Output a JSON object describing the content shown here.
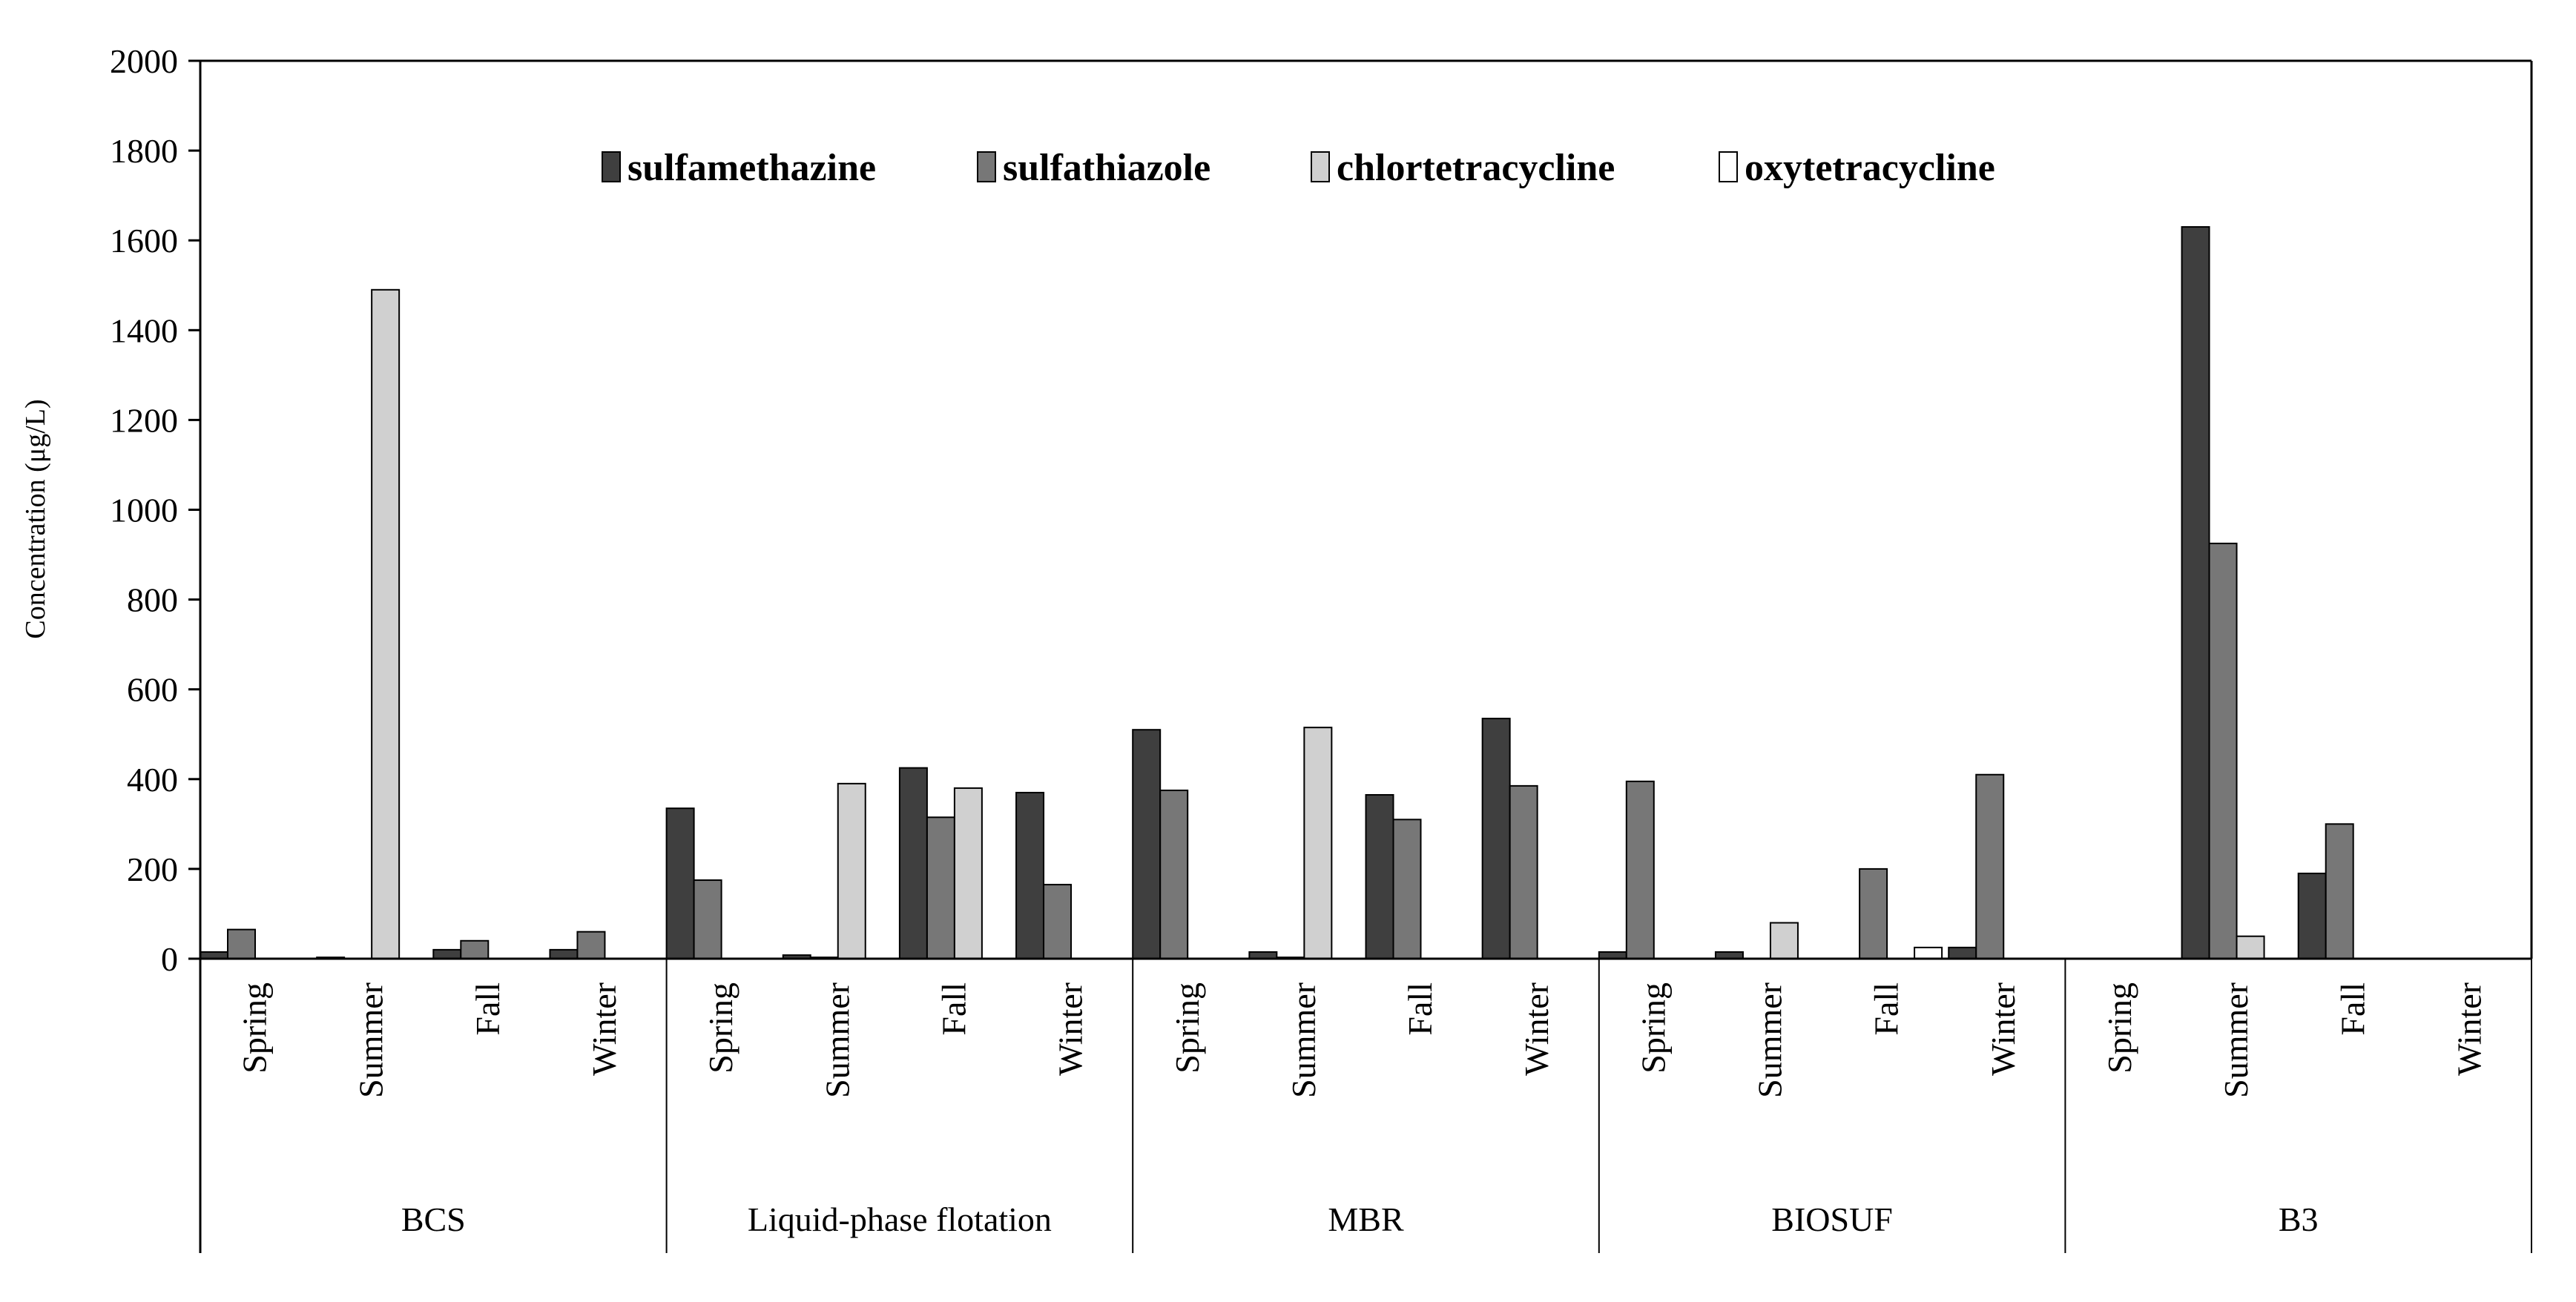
{
  "chart_data": {
    "type": "bar",
    "title": "",
    "xlabel": "",
    "ylabel": "Concentration (μg/L)",
    "ylim": [
      0,
      2000
    ],
    "yticks": [
      0,
      200,
      400,
      600,
      800,
      1000,
      1200,
      1400,
      1600,
      1800,
      2000
    ],
    "grid": false,
    "legend_position": "top",
    "groups": [
      "BCS",
      "Liquid-phase flotation",
      "MBR",
      "BIOSUF",
      "B3"
    ],
    "seasons": [
      "Spring",
      "Summer",
      "Fall",
      "Winter"
    ],
    "series": [
      {
        "name": "sulfamethazine",
        "color": "#3f3f3f",
        "values": [
          [
            15,
            3,
            20,
            20
          ],
          [
            335,
            8,
            425,
            370
          ],
          [
            510,
            15,
            365,
            535
          ],
          [
            15,
            15,
            0,
            25
          ],
          [
            0,
            1630,
            190,
            0
          ]
        ]
      },
      {
        "name": "sulfathiazole",
        "color": "#777777",
        "values": [
          [
            65,
            0,
            40,
            60
          ],
          [
            175,
            3,
            315,
            165
          ],
          [
            375,
            3,
            310,
            385
          ],
          [
            395,
            0,
            200,
            410
          ],
          [
            0,
            925,
            300,
            0
          ]
        ]
      },
      {
        "name": "chlortetracycline",
        "color": "#d0d0d0",
        "values": [
          [
            0,
            1490,
            0,
            0
          ],
          [
            0,
            390,
            380,
            0
          ],
          [
            0,
            515,
            0,
            0
          ],
          [
            0,
            80,
            0,
            0
          ],
          [
            0,
            50,
            0,
            0
          ]
        ]
      },
      {
        "name": "oxytetracycline",
        "color": "#ffffff",
        "values": [
          [
            0,
            0,
            0,
            0
          ],
          [
            0,
            0,
            0,
            0
          ],
          [
            0,
            0,
            0,
            0
          ],
          [
            0,
            0,
            25,
            0
          ],
          [
            0,
            0,
            0,
            0
          ]
        ]
      }
    ]
  }
}
